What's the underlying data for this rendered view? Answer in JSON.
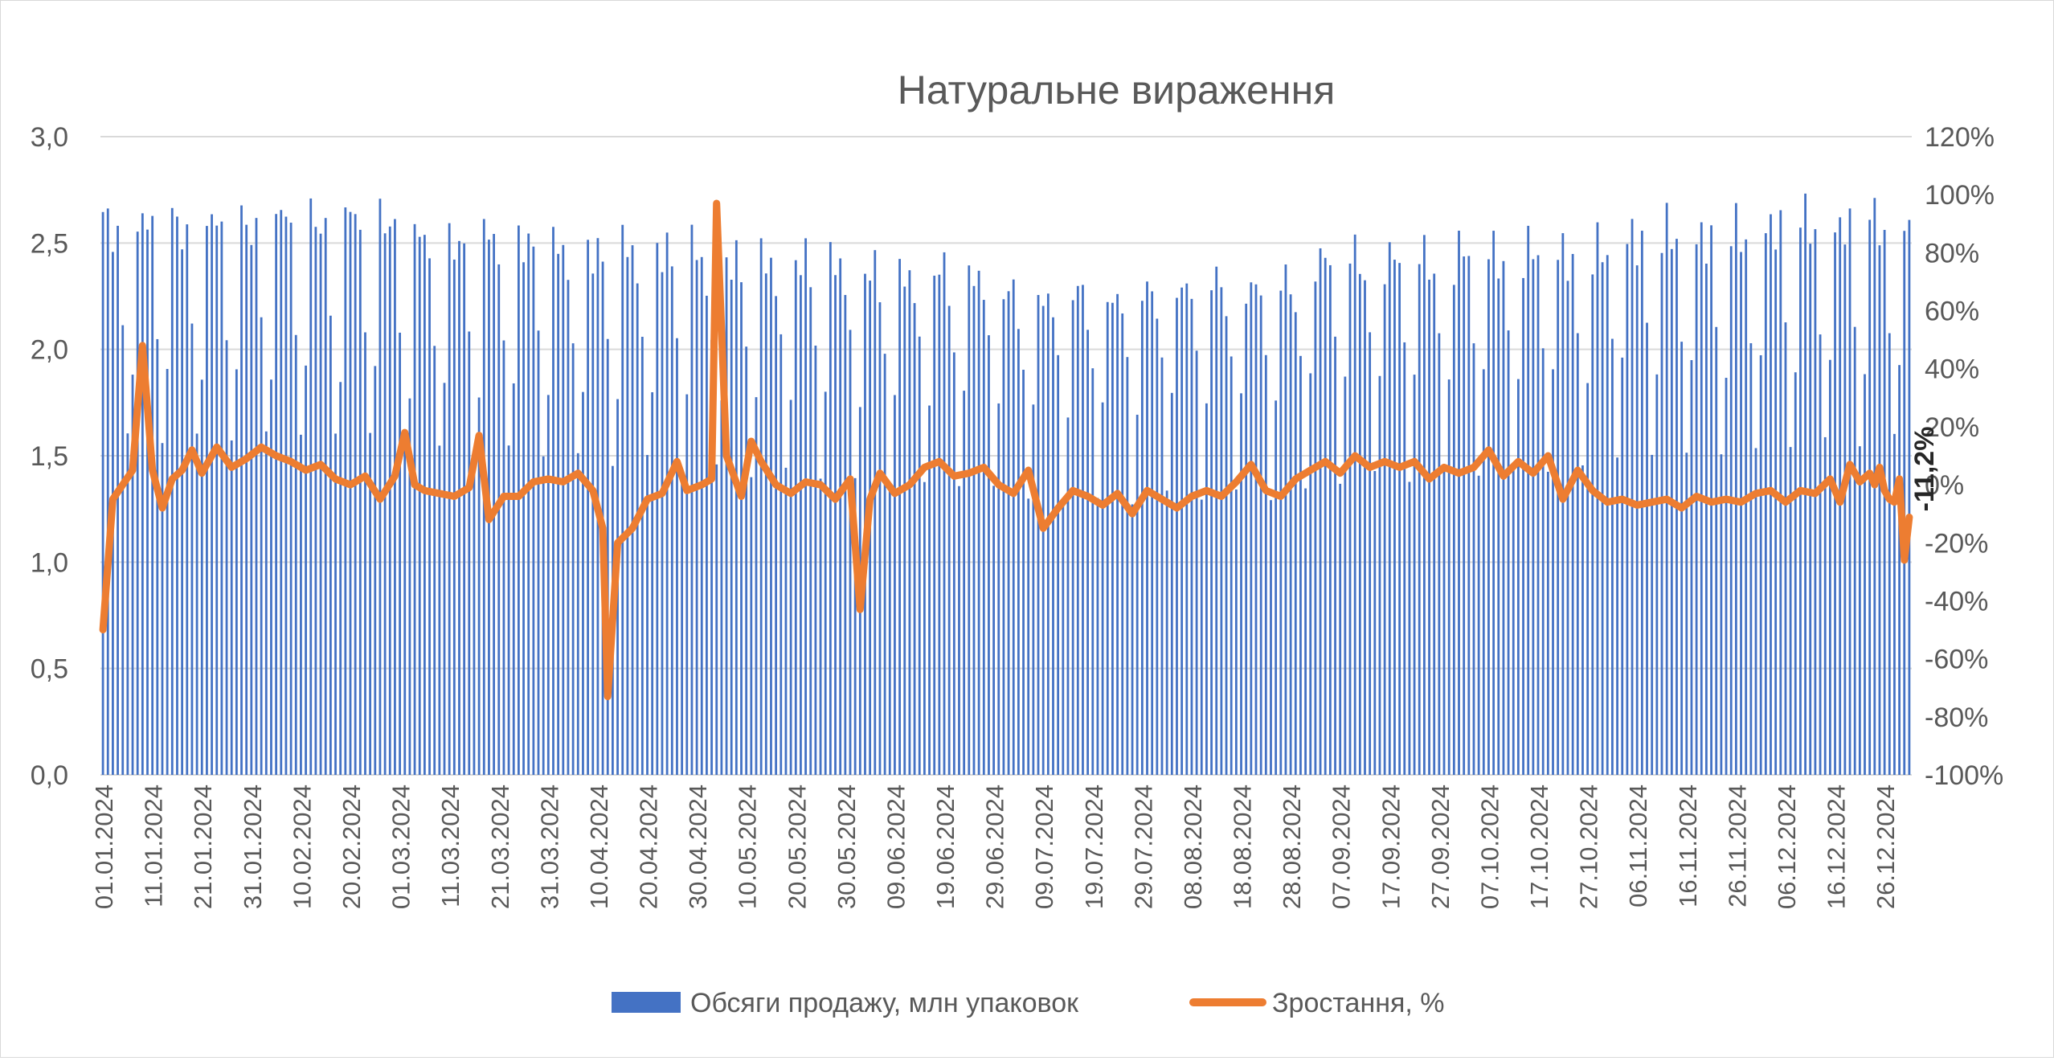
{
  "chart_data": {
    "type": "bar+line",
    "title": "Натуральне вираження",
    "x_start": "2024-01-01",
    "x_end": "2024-12-31",
    "x_tick_labels": [
      "01.01.2024",
      "11.01.2024",
      "21.01.2024",
      "31.01.2024",
      "10.02.2024",
      "20.02.2024",
      "01.03.2024",
      "11.03.2024",
      "21.03.2024",
      "31.03.2024",
      "10.04.2024",
      "20.04.2024",
      "30.04.2024",
      "10.05.2024",
      "20.05.2024",
      "30.05.2024",
      "09.06.2024",
      "19.06.2024",
      "29.06.2024",
      "09.07.2024",
      "19.07.2024",
      "29.07.2024",
      "08.08.2024",
      "18.08.2024",
      "28.08.2024",
      "07.09.2024",
      "17.09.2024",
      "27.09.2024",
      "07.10.2024",
      "17.10.2024",
      "27.10.2024",
      "06.11.2024",
      "16.11.2024",
      "26.11.2024",
      "06.12.2024",
      "16.12.2024",
      "26.12.2024"
    ],
    "y_left": {
      "range": [
        0,
        3
      ],
      "step": 0.5,
      "tick_labels": [
        "0,0",
        "0,5",
        "1,0",
        "1,5",
        "2,0",
        "2,5",
        "3,0"
      ]
    },
    "y_right": {
      "range": [
        -100,
        120
      ],
      "step": 20,
      "tick_labels": [
        "-100%",
        "-80%",
        "-60%",
        "-40%",
        "-20%",
        "0%",
        "20%",
        "40%",
        "60%",
        "80%",
        "100%",
        "120%"
      ]
    },
    "grid": true,
    "legend_position": "bottom",
    "annotation": "-11,2%",
    "series": [
      {
        "name": "Обсяги продажу, млн упаковок",
        "type": "bar",
        "axis": "left",
        "color": "#4472c4",
        "weekly_pattern": [
          2.62,
          2.64,
          2.6,
          2.55,
          2.18,
          1.55,
          1.95
        ],
        "weekly_note_first_weekday": "Monday",
        "level_by_month": [
          0.99,
          1.0,
          0.96,
          0.94,
          0.92,
          0.9,
          0.86,
          0.88,
          0.93,
          0.94,
          0.97,
          0.99
        ]
      },
      {
        "name": "Зростання, %",
        "type": "line",
        "axis": "right",
        "color": "#ed7d31",
        "points": [
          [
            "2024-01-01",
            -50
          ],
          [
            "2024-01-03",
            -5
          ],
          [
            "2024-01-05",
            0
          ],
          [
            "2024-01-07",
            5
          ],
          [
            "2024-01-09",
            48
          ],
          [
            "2024-01-11",
            5
          ],
          [
            "2024-01-13",
            -8
          ],
          [
            "2024-01-15",
            2
          ],
          [
            "2024-01-17",
            5
          ],
          [
            "2024-01-19",
            12
          ],
          [
            "2024-01-21",
            4
          ],
          [
            "2024-01-24",
            13
          ],
          [
            "2024-01-27",
            6
          ],
          [
            "2024-01-30",
            9
          ],
          [
            "2024-02-02",
            13
          ],
          [
            "2024-02-05",
            10
          ],
          [
            "2024-02-08",
            8
          ],
          [
            "2024-02-11",
            5
          ],
          [
            "2024-02-14",
            7
          ],
          [
            "2024-02-17",
            2
          ],
          [
            "2024-02-20",
            0
          ],
          [
            "2024-02-23",
            3
          ],
          [
            "2024-02-26",
            -5
          ],
          [
            "2024-02-29",
            3
          ],
          [
            "2024-03-02",
            18
          ],
          [
            "2024-03-04",
            0
          ],
          [
            "2024-03-06",
            -2
          ],
          [
            "2024-03-09",
            -3
          ],
          [
            "2024-03-12",
            -4
          ],
          [
            "2024-03-15",
            -1
          ],
          [
            "2024-03-17",
            17
          ],
          [
            "2024-03-19",
            -12
          ],
          [
            "2024-03-22",
            -4
          ],
          [
            "2024-03-25",
            -4
          ],
          [
            "2024-03-28",
            1
          ],
          [
            "2024-03-31",
            2
          ],
          [
            "2024-04-03",
            1
          ],
          [
            "2024-04-06",
            4
          ],
          [
            "2024-04-09",
            -2
          ],
          [
            "2024-04-11",
            -15
          ],
          [
            "2024-04-12",
            -73
          ],
          [
            "2024-04-14",
            -20
          ],
          [
            "2024-04-17",
            -15
          ],
          [
            "2024-04-20",
            -5
          ],
          [
            "2024-04-23",
            -3
          ],
          [
            "2024-04-26",
            8
          ],
          [
            "2024-04-28",
            -2
          ],
          [
            "2024-05-01",
            0
          ],
          [
            "2024-05-03",
            2
          ],
          [
            "2024-05-04",
            97
          ],
          [
            "2024-05-06",
            10
          ],
          [
            "2024-05-09",
            -4
          ],
          [
            "2024-05-11",
            15
          ],
          [
            "2024-05-13",
            8
          ],
          [
            "2024-05-16",
            0
          ],
          [
            "2024-05-19",
            -3
          ],
          [
            "2024-05-22",
            1
          ],
          [
            "2024-05-25",
            0
          ],
          [
            "2024-05-28",
            -5
          ],
          [
            "2024-05-31",
            2
          ],
          [
            "2024-06-02",
            -43
          ],
          [
            "2024-06-04",
            -5
          ],
          [
            "2024-06-06",
            4
          ],
          [
            "2024-06-09",
            -3
          ],
          [
            "2024-06-12",
            0
          ],
          [
            "2024-06-15",
            6
          ],
          [
            "2024-06-18",
            8
          ],
          [
            "2024-06-21",
            3
          ],
          [
            "2024-06-24",
            4
          ],
          [
            "2024-06-27",
            6
          ],
          [
            "2024-06-30",
            0
          ],
          [
            "2024-07-03",
            -3
          ],
          [
            "2024-07-06",
            5
          ],
          [
            "2024-07-09",
            -15
          ],
          [
            "2024-07-12",
            -8
          ],
          [
            "2024-07-15",
            -2
          ],
          [
            "2024-07-18",
            -4
          ],
          [
            "2024-07-21",
            -7
          ],
          [
            "2024-07-24",
            -3
          ],
          [
            "2024-07-27",
            -10
          ],
          [
            "2024-07-30",
            -2
          ],
          [
            "2024-08-02",
            -5
          ],
          [
            "2024-08-05",
            -8
          ],
          [
            "2024-08-08",
            -4
          ],
          [
            "2024-08-11",
            -2
          ],
          [
            "2024-08-14",
            -4
          ],
          [
            "2024-08-17",
            1
          ],
          [
            "2024-08-20",
            7
          ],
          [
            "2024-08-23",
            -2
          ],
          [
            "2024-08-26",
            -4
          ],
          [
            "2024-08-29",
            2
          ],
          [
            "2024-09-01",
            5
          ],
          [
            "2024-09-04",
            8
          ],
          [
            "2024-09-07",
            4
          ],
          [
            "2024-09-10",
            10
          ],
          [
            "2024-09-13",
            6
          ],
          [
            "2024-09-16",
            8
          ],
          [
            "2024-09-19",
            6
          ],
          [
            "2024-09-22",
            8
          ],
          [
            "2024-09-25",
            2
          ],
          [
            "2024-09-28",
            6
          ],
          [
            "2024-10-01",
            4
          ],
          [
            "2024-10-04",
            6
          ],
          [
            "2024-10-07",
            12
          ],
          [
            "2024-10-10",
            3
          ],
          [
            "2024-10-13",
            8
          ],
          [
            "2024-10-16",
            4
          ],
          [
            "2024-10-19",
            10
          ],
          [
            "2024-10-22",
            -5
          ],
          [
            "2024-10-25",
            5
          ],
          [
            "2024-10-28",
            -2
          ],
          [
            "2024-10-31",
            -6
          ],
          [
            "2024-11-03",
            -5
          ],
          [
            "2024-11-06",
            -7
          ],
          [
            "2024-11-09",
            -6
          ],
          [
            "2024-11-12",
            -5
          ],
          [
            "2024-11-15",
            -8
          ],
          [
            "2024-11-18",
            -4
          ],
          [
            "2024-11-21",
            -6
          ],
          [
            "2024-11-24",
            -5
          ],
          [
            "2024-11-27",
            -6
          ],
          [
            "2024-11-30",
            -3
          ],
          [
            "2024-12-03",
            -2
          ],
          [
            "2024-12-06",
            -6
          ],
          [
            "2024-12-09",
            -2
          ],
          [
            "2024-12-12",
            -3
          ],
          [
            "2024-12-15",
            2
          ],
          [
            "2024-12-17",
            -6
          ],
          [
            "2024-12-19",
            7
          ],
          [
            "2024-12-21",
            1
          ],
          [
            "2024-12-23",
            4
          ],
          [
            "2024-12-24",
            0
          ],
          [
            "2024-12-25",
            6
          ],
          [
            "2024-12-26",
            -2
          ],
          [
            "2024-12-27",
            -5
          ],
          [
            "2024-12-28",
            -6
          ],
          [
            "2024-12-29",
            2
          ],
          [
            "2024-12-30",
            -26
          ],
          [
            "2024-12-31",
            -11.2
          ]
        ]
      }
    ]
  }
}
